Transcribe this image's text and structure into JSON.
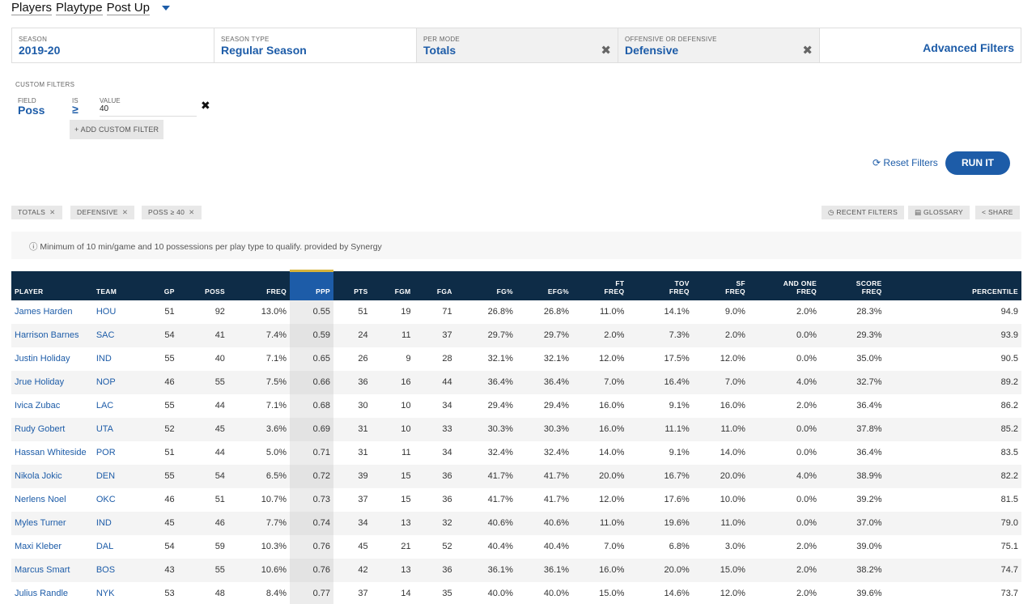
{
  "breadcrumbs": [
    "Players",
    "Playtype",
    "Post Up"
  ],
  "filters": [
    {
      "label": "SEASON",
      "value": "2019-20",
      "removable": false
    },
    {
      "label": "SEASON TYPE",
      "value": "Regular Season",
      "removable": false
    },
    {
      "label": "PER MODE",
      "value": "Totals",
      "removable": true
    },
    {
      "label": "OFFENSIVE OR DEFENSIVE",
      "value": "Defensive",
      "removable": true
    }
  ],
  "advanced_filters_label": "Advanced Filters",
  "custom_filters": {
    "heading": "CUSTOM FILTERS",
    "field_label": "FIELD",
    "field_value": "Poss",
    "is_label": "IS",
    "is_value": "≥",
    "value_label": "VALUE",
    "value": "40",
    "add_label": "+ ADD CUSTOM FILTER"
  },
  "reset_label": "Reset Filters",
  "run_label": "RUN IT",
  "tags": [
    "TOTALS",
    "DEFENSIVE",
    "POSS ≥ 40"
  ],
  "tools": [
    "RECENT FILTERS",
    "GLOSSARY",
    "SHARE"
  ],
  "note": "Minimum of 10 min/game and 10 possessions per play type to qualify. provided by Synergy",
  "columns": [
    "PLAYER",
    "TEAM",
    "GP",
    "POSS",
    "FREQ",
    "PPP",
    "PTS",
    "FGM",
    "FGA",
    "FG%",
    "EFG%",
    "FT|FREQ",
    "TOV|FREQ",
    "SF|FREQ",
    "AND ONE|FREQ",
    "SCORE|FREQ",
    "PERCENTILE"
  ],
  "rows": [
    [
      "James Harden",
      "HOU",
      "51",
      "92",
      "13.0%",
      "0.55",
      "51",
      "19",
      "71",
      "26.8%",
      "26.8%",
      "11.0%",
      "14.1%",
      "9.0%",
      "2.0%",
      "28.3%",
      "94.9"
    ],
    [
      "Harrison Barnes",
      "SAC",
      "54",
      "41",
      "7.4%",
      "0.59",
      "24",
      "11",
      "37",
      "29.7%",
      "29.7%",
      "2.0%",
      "7.3%",
      "2.0%",
      "0.0%",
      "29.3%",
      "93.9"
    ],
    [
      "Justin Holiday",
      "IND",
      "55",
      "40",
      "7.1%",
      "0.65",
      "26",
      "9",
      "28",
      "32.1%",
      "32.1%",
      "12.0%",
      "17.5%",
      "12.0%",
      "0.0%",
      "35.0%",
      "90.5"
    ],
    [
      "Jrue Holiday",
      "NOP",
      "46",
      "55",
      "7.5%",
      "0.66",
      "36",
      "16",
      "44",
      "36.4%",
      "36.4%",
      "7.0%",
      "16.4%",
      "7.0%",
      "4.0%",
      "32.7%",
      "89.2"
    ],
    [
      "Ivica Zubac",
      "LAC",
      "55",
      "44",
      "7.1%",
      "0.68",
      "30",
      "10",
      "34",
      "29.4%",
      "29.4%",
      "16.0%",
      "9.1%",
      "16.0%",
      "2.0%",
      "36.4%",
      "86.2"
    ],
    [
      "Rudy Gobert",
      "UTA",
      "52",
      "45",
      "3.6%",
      "0.69",
      "31",
      "10",
      "33",
      "30.3%",
      "30.3%",
      "16.0%",
      "11.1%",
      "11.0%",
      "0.0%",
      "37.8%",
      "85.2"
    ],
    [
      "Hassan Whiteside",
      "POR",
      "51",
      "44",
      "5.0%",
      "0.71",
      "31",
      "11",
      "34",
      "32.4%",
      "32.4%",
      "14.0%",
      "9.1%",
      "14.0%",
      "0.0%",
      "36.4%",
      "83.5"
    ],
    [
      "Nikola Jokic",
      "DEN",
      "55",
      "54",
      "6.5%",
      "0.72",
      "39",
      "15",
      "36",
      "41.7%",
      "41.7%",
      "20.0%",
      "16.7%",
      "20.0%",
      "4.0%",
      "38.9%",
      "82.2"
    ],
    [
      "Nerlens Noel",
      "OKC",
      "46",
      "51",
      "10.7%",
      "0.73",
      "37",
      "15",
      "36",
      "41.7%",
      "41.7%",
      "12.0%",
      "17.6%",
      "10.0%",
      "0.0%",
      "39.2%",
      "81.5"
    ],
    [
      "Myles Turner",
      "IND",
      "45",
      "46",
      "7.7%",
      "0.74",
      "34",
      "13",
      "32",
      "40.6%",
      "40.6%",
      "11.0%",
      "19.6%",
      "11.0%",
      "0.0%",
      "37.0%",
      "79.0"
    ],
    [
      "Maxi Kleber",
      "DAL",
      "54",
      "59",
      "10.3%",
      "0.76",
      "45",
      "21",
      "52",
      "40.4%",
      "40.4%",
      "7.0%",
      "6.8%",
      "3.0%",
      "2.0%",
      "39.0%",
      "75.1"
    ],
    [
      "Marcus Smart",
      "BOS",
      "43",
      "55",
      "10.6%",
      "0.76",
      "42",
      "13",
      "36",
      "36.1%",
      "36.1%",
      "16.0%",
      "20.0%",
      "15.0%",
      "2.0%",
      "38.2%",
      "74.7"
    ],
    [
      "Julius Randle",
      "NYK",
      "53",
      "48",
      "8.4%",
      "0.77",
      "37",
      "14",
      "35",
      "40.0%",
      "40.0%",
      "15.0%",
      "14.6%",
      "12.0%",
      "2.0%",
      "39.6%",
      "73.7"
    ]
  ]
}
